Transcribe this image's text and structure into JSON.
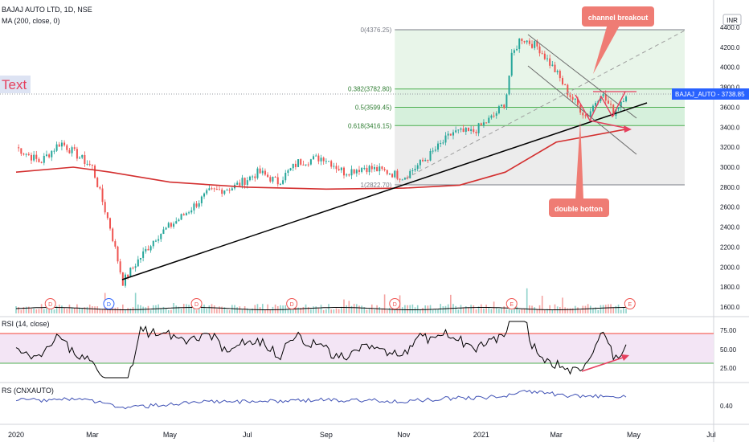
{
  "header": {
    "symbol_line": "BAJAJ AUTO LTD, 1D, NSE",
    "ma_line": "MA (200, close, 0)",
    "currency": "INR"
  },
  "text_tool_label": "Text",
  "price_badge": "BAJAJ_AUTO  - 3738.85",
  "annotations": {
    "channel_breakout": "channel breakout",
    "double_bottom": "double botton"
  },
  "fib_levels": [
    {
      "label": "0(4376.25)",
      "value": 4376.25
    },
    {
      "label": "0.382(3782.80)",
      "value": 3782.8
    },
    {
      "label": "0.5(3599.45)",
      "value": 3599.45
    },
    {
      "label": "0.618(3416.15)",
      "value": 3416.15
    },
    {
      "label": "1(2822.70)",
      "value": 2822.7
    }
  ],
  "rsi_panel": {
    "label": "RSI (14, close)",
    "upper": 70,
    "lower": 30,
    "ticks": [
      "75.00",
      "50.00",
      "25.00"
    ]
  },
  "rs_panel": {
    "label": "RS (CNXAUTO)",
    "ticks": [
      "0.40"
    ]
  },
  "event_markers": [
    "D",
    "D",
    "D",
    "D",
    "D",
    "E"
  ],
  "colors": {
    "candle_up": "#26a69a",
    "candle_down": "#ef5350",
    "ma_line": "#d32f2f",
    "trendline": "#000000",
    "fib_green": "#4caf50",
    "rsi_line": "#000000",
    "rs_line": "#3f51b5",
    "rsi_fill": "#f3e5f5",
    "callout": "#ef7c74",
    "price_badge": "#2962ff"
  },
  "chart_data": {
    "type": "candlestick",
    "ylim": [
      1500,
      4600
    ],
    "y_ticks": [
      1600,
      1800,
      2000,
      2200,
      2400,
      2600,
      2800,
      3000,
      3200,
      3400,
      3600,
      3800,
      4000,
      4200,
      4400
    ],
    "x_labels": [
      "2020",
      "Mar",
      "May",
      "Jul",
      "Sep",
      "Nov",
      "2021",
      "Mar",
      "May",
      "Jul"
    ],
    "price_path": [
      {
        "date": "2020-01-01",
        "close": 3200
      },
      {
        "date": "2020-01-20",
        "close": 3050
      },
      {
        "date": "2020-02-05",
        "close": 3250
      },
      {
        "date": "2020-02-20",
        "close": 3100
      },
      {
        "date": "2020-03-01",
        "close": 3000
      },
      {
        "date": "2020-03-15",
        "close": 2400
      },
      {
        "date": "2020-03-25",
        "close": 1850
      },
      {
        "date": "2020-04-05",
        "close": 2050
      },
      {
        "date": "2020-04-20",
        "close": 2300
      },
      {
        "date": "2020-05-10",
        "close": 2500
      },
      {
        "date": "2020-06-01",
        "close": 2750
      },
      {
        "date": "2020-06-20",
        "close": 2800
      },
      {
        "date": "2020-07-10",
        "close": 2950
      },
      {
        "date": "2020-07-25",
        "close": 2850
      },
      {
        "date": "2020-08-10",
        "close": 3050
      },
      {
        "date": "2020-08-30",
        "close": 3100
      },
      {
        "date": "2020-09-15",
        "close": 2950
      },
      {
        "date": "2020-10-01",
        "close": 3000
      },
      {
        "date": "2020-10-20",
        "close": 2950
      },
      {
        "date": "2020-11-01",
        "close": 2900
      },
      {
        "date": "2020-11-20",
        "close": 3100
      },
      {
        "date": "2020-12-10",
        "close": 3350
      },
      {
        "date": "2020-12-25",
        "close": 3350
      },
      {
        "date": "2021-01-10",
        "close": 3500
      },
      {
        "date": "2021-01-20",
        "close": 3650
      },
      {
        "date": "2021-01-25",
        "close": 4100
      },
      {
        "date": "2021-02-01",
        "close": 4300
      },
      {
        "date": "2021-02-15",
        "close": 4200
      },
      {
        "date": "2021-03-01",
        "close": 3950
      },
      {
        "date": "2021-03-10",
        "close": 3750
      },
      {
        "date": "2021-03-25",
        "close": 3500
      },
      {
        "date": "2021-04-05",
        "close": 3750
      },
      {
        "date": "2021-04-15",
        "close": 3550
      },
      {
        "date": "2021-04-25",
        "close": 3740
      }
    ],
    "ma200": [
      {
        "date": "2020-01-01",
        "value": 2950
      },
      {
        "date": "2020-02-15",
        "value": 3000
      },
      {
        "date": "2020-03-15",
        "value": 2950
      },
      {
        "date": "2020-05-01",
        "value": 2850
      },
      {
        "date": "2020-07-01",
        "value": 2800
      },
      {
        "date": "2020-09-01",
        "value": 2780
      },
      {
        "date": "2020-11-01",
        "value": 2790
      },
      {
        "date": "2020-12-15",
        "value": 2820
      },
      {
        "date": "2021-01-20",
        "value": 2950
      },
      {
        "date": "2021-03-01",
        "value": 3250
      },
      {
        "date": "2021-04-25",
        "value": 3380
      }
    ]
  }
}
